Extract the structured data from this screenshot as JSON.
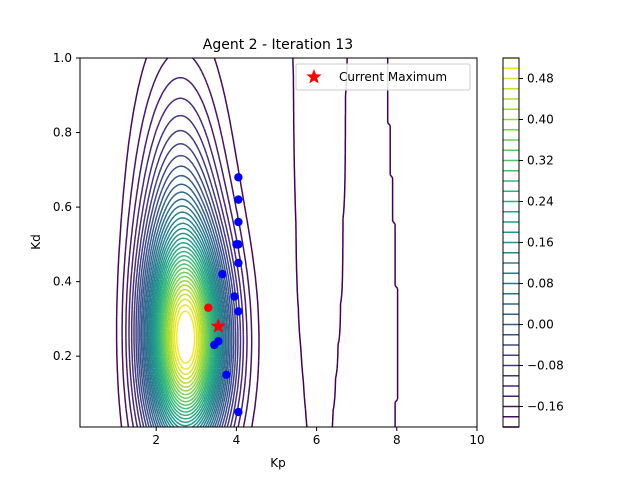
{
  "chart_data": {
    "type": "contour",
    "title": "Agent 2 - Iteration 13",
    "xlabel": "Kp",
    "ylabel": "Kd",
    "xlim": [
      0.1,
      10
    ],
    "ylim": [
      0.01,
      1.0
    ],
    "x_ticks": [
      {
        "value": 2,
        "label": "2"
      },
      {
        "value": 4,
        "label": "4"
      },
      {
        "value": 6,
        "label": "6"
      },
      {
        "value": 8,
        "label": "8"
      },
      {
        "value": 10,
        "label": "10"
      }
    ],
    "y_ticks": [
      {
        "value": 0.2,
        "label": "0.2"
      },
      {
        "value": 0.4,
        "label": "0.4"
      },
      {
        "value": 0.6,
        "label": "0.6"
      },
      {
        "value": 0.8,
        "label": "0.8"
      },
      {
        "value": 1.0,
        "label": "1.0"
      }
    ],
    "colorbar": {
      "levels": [
        -0.2,
        -0.18,
        -0.16,
        -0.14,
        -0.12,
        -0.1,
        -0.08,
        -0.06,
        -0.04,
        -0.02,
        0.0,
        0.02,
        0.04,
        0.06,
        0.08,
        0.1,
        0.12,
        0.14,
        0.16,
        0.18,
        0.2,
        0.22,
        0.24,
        0.26,
        0.28,
        0.3,
        0.32,
        0.34,
        0.36,
        0.38,
        0.4,
        0.42,
        0.44,
        0.46,
        0.48,
        0.5,
        0.52
      ],
      "range": [
        -0.2,
        0.52
      ],
      "tick_labels": [
        {
          "value": -0.16,
          "label": "−0.16"
        },
        {
          "value": -0.08,
          "label": "−0.08"
        },
        {
          "value": 0.0,
          "label": "0.00"
        },
        {
          "value": 0.08,
          "label": "0.08"
        },
        {
          "value": 0.16,
          "label": "0.16"
        },
        {
          "value": 0.24,
          "label": "0.24"
        },
        {
          "value": 0.32,
          "label": "0.32"
        },
        {
          "value": 0.4,
          "label": "0.40"
        },
        {
          "value": 0.48,
          "label": "0.48"
        }
      ],
      "colormap": "viridis"
    },
    "samples": {
      "color": "#0000ff",
      "points": [
        {
          "x": 4.05,
          "y": 0.68
        },
        {
          "x": 4.05,
          "y": 0.62
        },
        {
          "x": 4.05,
          "y": 0.56
        },
        {
          "x": 4.0,
          "y": 0.5
        },
        {
          "x": 4.05,
          "y": 0.5
        },
        {
          "x": 4.05,
          "y": 0.45
        },
        {
          "x": 3.65,
          "y": 0.42
        },
        {
          "x": 3.95,
          "y": 0.36
        },
        {
          "x": 4.05,
          "y": 0.32
        },
        {
          "x": 3.55,
          "y": 0.24
        },
        {
          "x": 3.45,
          "y": 0.23
        },
        {
          "x": 3.75,
          "y": 0.15
        },
        {
          "x": 4.05,
          "y": 0.05
        }
      ]
    },
    "latest_sample": {
      "x": 3.3,
      "y": 0.33,
      "color": "#ff0000"
    },
    "current_maximum": {
      "x": 3.55,
      "y": 0.28,
      "color": "#ff0000"
    },
    "legend": {
      "entries": [
        {
          "label": "Current Maximum",
          "marker": "star",
          "color": "#ff0000"
        }
      ],
      "position": "upper right"
    },
    "contour_model": {
      "peak": {
        "x": 2.8,
        "y": 0.23,
        "value": 0.52
      },
      "baseline": -0.2,
      "peak_sigma_x": 0.95,
      "peak_sigma_y": 0.26,
      "ridge": {
        "center_x": 2.6,
        "sigma_x": 0.95,
        "sigma_y": 0.46,
        "weight": 0.38
      },
      "left_falloff_x": 0.9,
      "valley_x": 5.95,
      "right_edge_x": 6.7,
      "note_omitted": true
    }
  }
}
